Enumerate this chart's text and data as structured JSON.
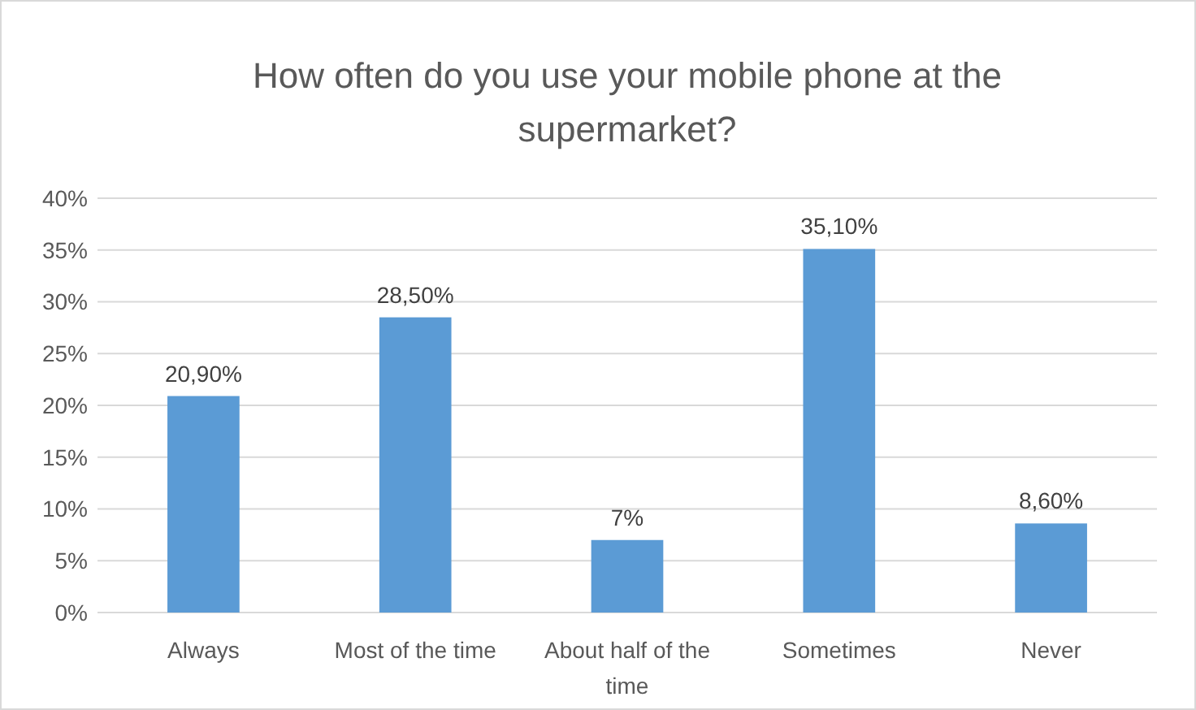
{
  "chart_data": {
    "type": "bar",
    "title": "How often do you use your mobile phone at the supermarket?",
    "categories": [
      "Always",
      "Most of the time",
      "About half of the time",
      "Sometimes",
      "Never"
    ],
    "values": [
      20.9,
      28.5,
      7,
      35.1,
      8.6
    ],
    "color": "#5b9bd5",
    "value_labels": [
      "20,90%",
      "28,50%",
      "7%",
      "35,10%",
      "8,60%"
    ],
    "ylim": [
      0,
      40
    ],
    "yticks": [
      {
        "value": 0,
        "label": "0%"
      },
      {
        "value": 5,
        "label": "5%"
      },
      {
        "value": 10,
        "label": "10%"
      },
      {
        "value": 15,
        "label": "15%"
      },
      {
        "value": 20,
        "label": "20%"
      },
      {
        "value": 25,
        "label": "25%"
      },
      {
        "value": 30,
        "label": "30%"
      },
      {
        "value": 35,
        "label": "35%"
      },
      {
        "value": 40,
        "label": "40%"
      }
    ],
    "grid": "y"
  }
}
